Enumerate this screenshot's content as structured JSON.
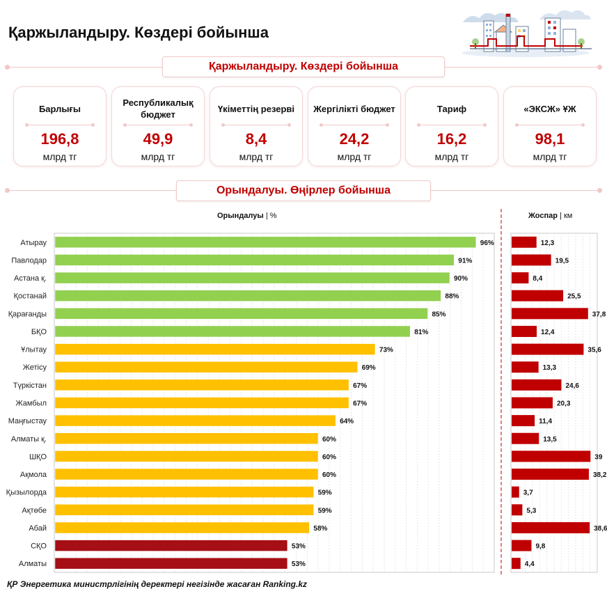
{
  "page": {
    "title": "Қаржыландыру. Көздері бойынша"
  },
  "funding": {
    "header": "Қаржыландыру. Көздері бойынша",
    "cards": [
      {
        "label": "Барлығы",
        "value": "196,8",
        "unit": "млрд тг"
      },
      {
        "label": "Республикалық бюджет",
        "value": "49,9",
        "unit": "млрд тг"
      },
      {
        "label": "Үкіметтің резерві",
        "value": "8,4",
        "unit": "млрд тг"
      },
      {
        "label": "Жергілікті бюджет",
        "value": "24,2",
        "unit": "млрд тг"
      },
      {
        "label": "Тариф",
        "value": "16,2",
        "unit": "млрд тг"
      },
      {
        "label": "«ЭКСЖ» ҰЖ",
        "value": "98,1",
        "unit": "млрд тг"
      }
    ]
  },
  "regions_section": {
    "header": "Орындалуы. Өңірлер бойынша"
  },
  "colors": {
    "high": "#92d050",
    "mid": "#ffc000",
    "low": "#a50f15",
    "plan": "#c00000",
    "accent": "#c00000"
  },
  "chart_data": [
    {
      "type": "bar",
      "orientation": "horizontal",
      "title": "Орындалуы",
      "unit": "%",
      "separator": "|",
      "xlim": [
        0,
        100
      ],
      "grid": true,
      "categories": [
        "Атырау",
        "Павлодар",
        "Астана қ.",
        "Қостанай",
        "Қарағанды",
        "БҚО",
        "Ұлытау",
        "Жетісу",
        "Түркістан",
        "Жамбыл",
        "Маңғыстау",
        "Алматы қ.",
        "ШҚО",
        "Ақмола",
        "Қызылорда",
        "Ақтөбе",
        "Абай",
        "СҚО",
        "Алматы"
      ],
      "values": [
        96,
        91,
        90,
        88,
        85,
        81,
        73,
        69,
        67,
        67,
        64,
        60,
        60,
        60,
        59,
        59,
        58,
        53,
        53
      ],
      "value_labels": [
        "96%",
        "91%",
        "90%",
        "88%",
        "85%",
        "81%",
        "73%",
        "69%",
        "67%",
        "67%",
        "64%",
        "60%",
        "60%",
        "60%",
        "59%",
        "59%",
        "58%",
        "53%",
        "53%"
      ]
    },
    {
      "type": "bar",
      "orientation": "horizontal",
      "title": "Жоспар",
      "unit": "км",
      "separator": "|",
      "xlim": [
        0,
        42
      ],
      "grid": true,
      "categories": [
        "Атырау",
        "Павлодар",
        "Астана қ.",
        "Қостанай",
        "Қарағанды",
        "БҚО",
        "Ұлытау",
        "Жетісу",
        "Түркістан",
        "Жамбыл",
        "Маңғыстау",
        "Алматы қ.",
        "ШҚО",
        "Ақмола",
        "Қызылорда",
        "Ақтөбе",
        "Абай",
        "СҚО",
        "Алматы"
      ],
      "values": [
        12.3,
        19.5,
        8.4,
        25.5,
        37.8,
        12.4,
        35.6,
        13.3,
        24.6,
        20.3,
        11.4,
        13.5,
        39,
        38.2,
        3.7,
        5.3,
        38.6,
        9.8,
        4.4
      ],
      "value_labels": [
        "12,3",
        "19,5",
        "8,4",
        "25,5",
        "37,8",
        "12,4",
        "35,6",
        "13,3",
        "24,6",
        "20,3",
        "11,4",
        "13,5",
        "39",
        "38,2",
        "3,7",
        "5,3",
        "38,6",
        "9,8",
        "4,4"
      ]
    }
  ],
  "source": "ҚР Энергетика министрлігінің деректері негізінде жасаған Ranking.kz"
}
